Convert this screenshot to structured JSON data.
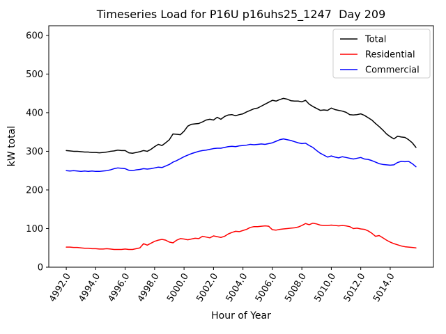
{
  "chart_data": {
    "type": "line",
    "title": "Timeseries Load for P16U p16uhs25_1247  Day 209",
    "xlabel": "Hour of Year",
    "ylabel": "kW total",
    "xlim": [
      4990.8125,
      5016.9375
    ],
    "ylim": [
      0,
      625
    ],
    "grid": false,
    "xtick_values": [
      4992,
      4994,
      4996,
      4998,
      5000,
      5002,
      5004,
      5006,
      5008,
      5010,
      5012,
      5014
    ],
    "xtick_labels": [
      "4992.0",
      "4994.0",
      "4996.0",
      "4998.0",
      "5000.0",
      "5002.0",
      "5004.0",
      "5006.0",
      "5008.0",
      "5010.0",
      "5012.0",
      "5014.0"
    ],
    "ytick_values": [
      0,
      100,
      200,
      300,
      400,
      500,
      600
    ],
    "ytick_labels": [
      "0",
      "100",
      "200",
      "300",
      "400",
      "500",
      "600"
    ],
    "legend": {
      "position": "upper right",
      "entries": [
        "Total",
        "Residential",
        "Commercial"
      ]
    },
    "x": [
      4992.0,
      4992.25,
      4992.5,
      4992.75,
      4993.0,
      4993.25,
      4993.5,
      4993.75,
      4994.0,
      4994.25,
      4994.5,
      4994.75,
      4995.0,
      4995.25,
      4995.5,
      4995.75,
      4996.0,
      4996.25,
      4996.5,
      4996.75,
      4997.0,
      4997.25,
      4997.5,
      4997.75,
      4998.0,
      4998.25,
      4998.5,
      4998.75,
      4999.0,
      4999.25,
      4999.5,
      4999.75,
      5000.0,
      5000.25,
      5000.5,
      5000.75,
      5001.0,
      5001.25,
      5001.5,
      5001.75,
      5002.0,
      5002.25,
      5002.5,
      5002.75,
      5003.0,
      5003.25,
      5003.5,
      5003.75,
      5004.0,
      5004.25,
      5004.5,
      5004.75,
      5005.0,
      5005.25,
      5005.5,
      5005.75,
      5006.0,
      5006.25,
      5006.5,
      5006.75,
      5007.0,
      5007.25,
      5007.5,
      5007.75,
      5008.0,
      5008.25,
      5008.5,
      5008.75,
      5009.0,
      5009.25,
      5009.5,
      5009.75,
      5010.0,
      5010.25,
      5010.5,
      5010.75,
      5011.0,
      5011.25,
      5011.5,
      5011.75,
      5012.0,
      5012.25,
      5012.5,
      5012.75,
      5013.0,
      5013.25,
      5013.5,
      5013.75,
      5014.0,
      5014.25,
      5014.5,
      5014.75,
      5015.0,
      5015.25,
      5015.5,
      5015.75
    ],
    "series": [
      {
        "name": "Total",
        "color": "#000000",
        "values": [
          302,
          301,
          300,
          300,
          299,
          298,
          298,
          297,
          297,
          296,
          297,
          298,
          300,
          301,
          303,
          302,
          302,
          296,
          295,
          297,
          299,
          302,
          300,
          305,
          312,
          318,
          315,
          322,
          330,
          345,
          344,
          343,
          352,
          365,
          370,
          371,
          372,
          376,
          381,
          383,
          381,
          388,
          383,
          390,
          394,
          395,
          392,
          395,
          397,
          402,
          406,
          410,
          412,
          417,
          422,
          427,
          432,
          430,
          434,
          437,
          435,
          431,
          430,
          430,
          428,
          432,
          422,
          416,
          411,
          406,
          407,
          406,
          412,
          408,
          406,
          404,
          401,
          395,
          394,
          395,
          397,
          393,
          387,
          381,
          372,
          364,
          355,
          345,
          338,
          332,
          339,
          337,
          336,
          330,
          322,
          310
        ]
      },
      {
        "name": "Residential",
        "color": "#ff0000",
        "values": [
          52,
          52,
          51,
          51,
          50,
          49,
          49,
          48,
          48,
          47,
          47,
          48,
          47,
          46,
          46,
          46,
          47,
          46,
          46,
          48,
          50,
          61,
          57,
          62,
          67,
          70,
          72,
          70,
          65,
          63,
          70,
          74,
          73,
          71,
          73,
          75,
          74,
          80,
          78,
          76,
          81,
          79,
          77,
          80,
          86,
          90,
          93,
          92,
          95,
          98,
          103,
          105,
          105,
          106,
          107,
          106,
          97,
          96,
          98,
          99,
          100,
          101,
          102,
          104,
          108,
          113,
          110,
          114,
          112,
          109,
          108,
          108,
          109,
          108,
          107,
          108,
          107,
          105,
          100,
          101,
          99,
          98,
          94,
          88,
          80,
          82,
          76,
          70,
          65,
          61,
          58,
          55,
          53,
          52,
          51,
          50
        ]
      },
      {
        "name": "Commercial",
        "color": "#0000ff",
        "values": [
          250,
          249,
          250,
          249,
          248,
          249,
          248,
          249,
          248,
          248,
          249,
          250,
          252,
          255,
          257,
          256,
          255,
          251,
          250,
          252,
          253,
          255,
          254,
          255,
          257,
          259,
          258,
          262,
          266,
          272,
          276,
          281,
          286,
          290,
          294,
          297,
          300,
          302,
          303,
          305,
          307,
          308,
          308,
          310,
          312,
          313,
          312,
          314,
          315,
          316,
          318,
          317,
          318,
          319,
          318,
          320,
          322,
          326,
          330,
          332,
          330,
          328,
          325,
          322,
          320,
          321,
          315,
          310,
          302,
          295,
          290,
          285,
          288,
          285,
          283,
          286,
          284,
          282,
          280,
          282,
          284,
          280,
          279,
          276,
          272,
          268,
          266,
          265,
          264,
          265,
          271,
          274,
          273,
          274,
          268,
          260
        ]
      }
    ]
  }
}
